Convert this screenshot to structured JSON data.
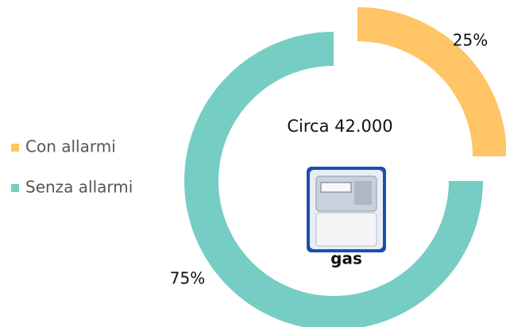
{
  "chart_data": {
    "type": "donut",
    "categories": [
      "Con allarmi",
      "Senza allarmi"
    ],
    "values": [
      25,
      75
    ],
    "value_labels": [
      "25%",
      "75%"
    ],
    "colors": [
      "#ffc465",
      "#76cdc4"
    ],
    "center_label": "Circa 42.000",
    "image_label": "gas",
    "legend": "left"
  }
}
